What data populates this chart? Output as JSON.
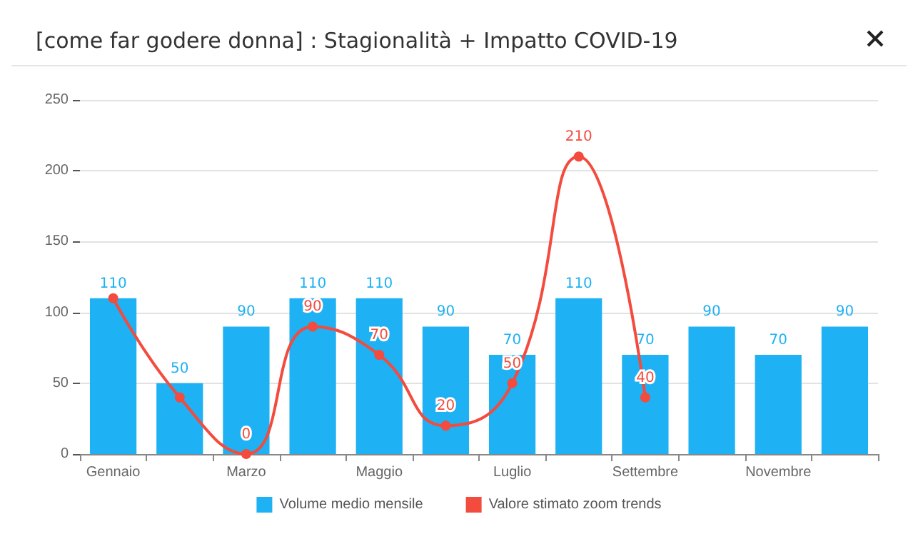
{
  "chart_data": {
    "type": "bar",
    "title": "[come far godere donna] : Stagionalità + Impatto COVID-19",
    "categories": [
      "Gennaio",
      null,
      "Marzo",
      null,
      "Maggio",
      null,
      "Luglio",
      null,
      "Settembre",
      null,
      "Novembre",
      null
    ],
    "series": [
      {
        "name": "Volume medio mensile",
        "color": "#1eb1f3",
        "values": [
          110,
          50,
          90,
          110,
          110,
          90,
          70,
          110,
          70,
          90,
          70,
          90
        ],
        "value_labels": [
          "110",
          "50",
          "90",
          "110",
          "110",
          "90",
          "70",
          "110",
          "70",
          "90",
          "70",
          "90"
        ]
      },
      {
        "name": "Valore stimato zoom trends",
        "type": "line",
        "color": "#f34b3d",
        "values": [
          110,
          40,
          0,
          90,
          70,
          20,
          50,
          210,
          40,
          null,
          null,
          null
        ],
        "value_labels": [
          null,
          null,
          "0",
          "90",
          "70",
          "20",
          "50",
          "210",
          "40",
          null,
          null,
          null
        ]
      }
    ],
    "ylim": [
      0,
      250
    ],
    "yticks": [
      0,
      50,
      100,
      150,
      200,
      250
    ],
    "grid": "y",
    "legend": "bottom",
    "marker": "circle"
  }
}
